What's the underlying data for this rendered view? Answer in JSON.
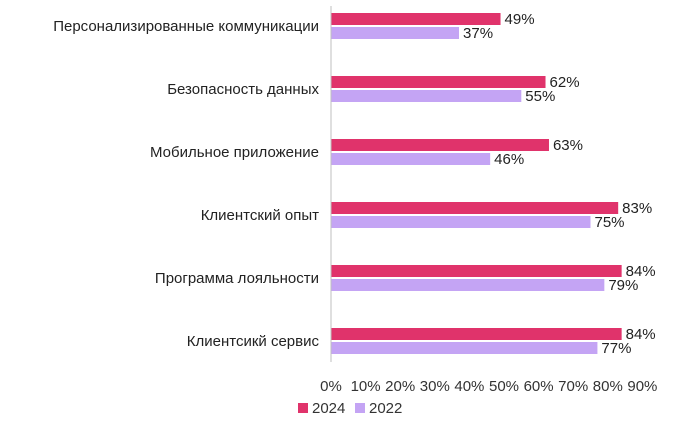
{
  "chart_data": {
    "type": "bar",
    "orientation": "horizontal",
    "categories": [
      "Персонализированные коммуникации",
      "Безопасность данных",
      "Мобильное приложение",
      "Клиентский опыт",
      "Программа лояльности",
      "Клиентсикй сервис"
    ],
    "series": [
      {
        "name": "2024",
        "color": "#e0336b",
        "values": [
          49,
          62,
          63,
          83,
          84,
          84
        ]
      },
      {
        "name": "2022",
        "color": "#c4a4f4",
        "values": [
          37,
          55,
          46,
          75,
          79,
          77
        ]
      }
    ],
    "value_suffix": "%",
    "xlim": [
      0,
      90
    ],
    "xticks": [
      "0%",
      "10%",
      "20%",
      "30%",
      "40%",
      "50%",
      "60%",
      "70%",
      "80%",
      "90%"
    ],
    "grid": false,
    "legend_position": "bottom-left"
  }
}
